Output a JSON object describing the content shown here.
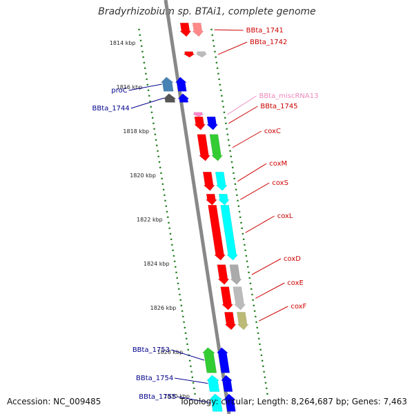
{
  "title": "Bradyrhizobium sp. BTAi1, complete genome",
  "footer": {
    "accession": "Accession: NC_009485",
    "summary": "Topology: circular; Length: 8,264,687 bp; Genes: 7,463"
  },
  "colors": {
    "axis": "#888888",
    "tick": "#1e7e1e",
    "label_red": "#cc0000",
    "label_blue": "#00008b",
    "label_pink": "#ee88bb"
  },
  "scale": {
    "labels": [
      "1814 kbp",
      "1816 kbp",
      "1818 kbp",
      "1820 kbp",
      "1822 kbp",
      "1824 kbp",
      "1826 kbp",
      "1828 kbp",
      "1830 kbp"
    ]
  },
  "genes": [
    {
      "label": "BBta_1741",
      "strand": "+",
      "color": "#ff0000",
      "color2": "#ff8888",
      "start": 1813.1,
      "end": 1813.72
    },
    {
      "label": "BBta_1742",
      "strand": "+",
      "color": "#ff0000",
      "color2": "#bbbbbb",
      "start": 1814.4,
      "end": 1814.66
    },
    {
      "label": "proC",
      "strand": "-",
      "color": "#4682b4",
      "color2": "#0000ff",
      "start": 1815.55,
      "end": 1816.2
    },
    {
      "label": "BBta_1744",
      "strand": "-",
      "color": "#555555",
      "color2": "#0000ff",
      "start": 1816.3,
      "end": 1816.7
    },
    {
      "label": "BBta_miscRNA13",
      "strand": "+",
      "color": "#ff88cc",
      "color2": "",
      "start": 1817.15,
      "end": 1817.35
    },
    {
      "label": "BBta_1745",
      "strand": "+",
      "color": "#ff0000",
      "color2": "#0000ff",
      "start": 1817.35,
      "end": 1817.95
    },
    {
      "label": "coxC",
      "strand": "+",
      "color": "#ff0000",
      "color2": "#33cc33",
      "start": 1818.15,
      "end": 1819.35
    },
    {
      "label": "coxM",
      "strand": "+",
      "color": "#ff0000",
      "color2": "#00ffff",
      "start": 1819.85,
      "end": 1820.7
    },
    {
      "label": "coxS",
      "strand": "+",
      "color": "#ff0000",
      "color2": "#00ffff",
      "start": 1820.85,
      "end": 1821.35
    },
    {
      "label": "coxL",
      "strand": "+",
      "color": "#ff0000",
      "color2": "#00ffff",
      "start": 1821.35,
      "end": 1823.85
    },
    {
      "label": "coxD",
      "strand": "+",
      "color": "#ff0000",
      "color2": "#aaaaaa",
      "start": 1824.05,
      "end": 1824.95
    },
    {
      "label": "coxE",
      "strand": "+",
      "color": "#ff0000",
      "color2": "#bbbbbb",
      "start": 1825.05,
      "end": 1826.1
    },
    {
      "label": "coxF",
      "strand": "+",
      "color": "#ff0000",
      "color2": "#bbbb77",
      "start": 1826.2,
      "end": 1827.0
    },
    {
      "label": "BBta_1753",
      "strand": "-",
      "color": "#33cc33",
      "color2": "#0000ff",
      "start": 1827.8,
      "end": 1828.95
    },
    {
      "label": "BBta_1754",
      "strand": "-",
      "color": "#00ffff",
      "color2": "#0000ff",
      "start": 1829.05,
      "end": 1829.8
    },
    {
      "label": "BBta_1755",
      "strand": "-",
      "color": "#00ffff",
      "color2": "#0000ff",
      "start": 1829.9,
      "end": 1830.7
    }
  ]
}
